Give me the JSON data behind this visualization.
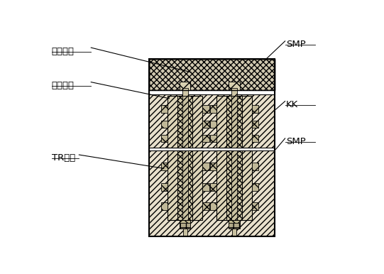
{
  "fig_width": 5.41,
  "fig_height": 3.86,
  "dpi": 100,
  "bg_color": "#ffffff",
  "line_color": "#000000",
  "labels": {
    "patch_antenna": "贴片天线",
    "antenna_substrate": "天线基板",
    "tr_module": "TR模块",
    "smp_top": "SMP",
    "kk": "KK",
    "smp_bottom": "SMP"
  },
  "colors": {
    "bg_hatch_fill": "#e8e0cc",
    "cross_hatch_fill": "#d8ccb0",
    "white_fill": "#ffffff",
    "connector_outer": "#d0c8b0",
    "connector_inner_hatch": "#c8c0a4",
    "connector_check": "#b8b090",
    "connector_center": "#d8d0b8",
    "flange_fill": "#c0b898",
    "gray_check": "#909090"
  }
}
